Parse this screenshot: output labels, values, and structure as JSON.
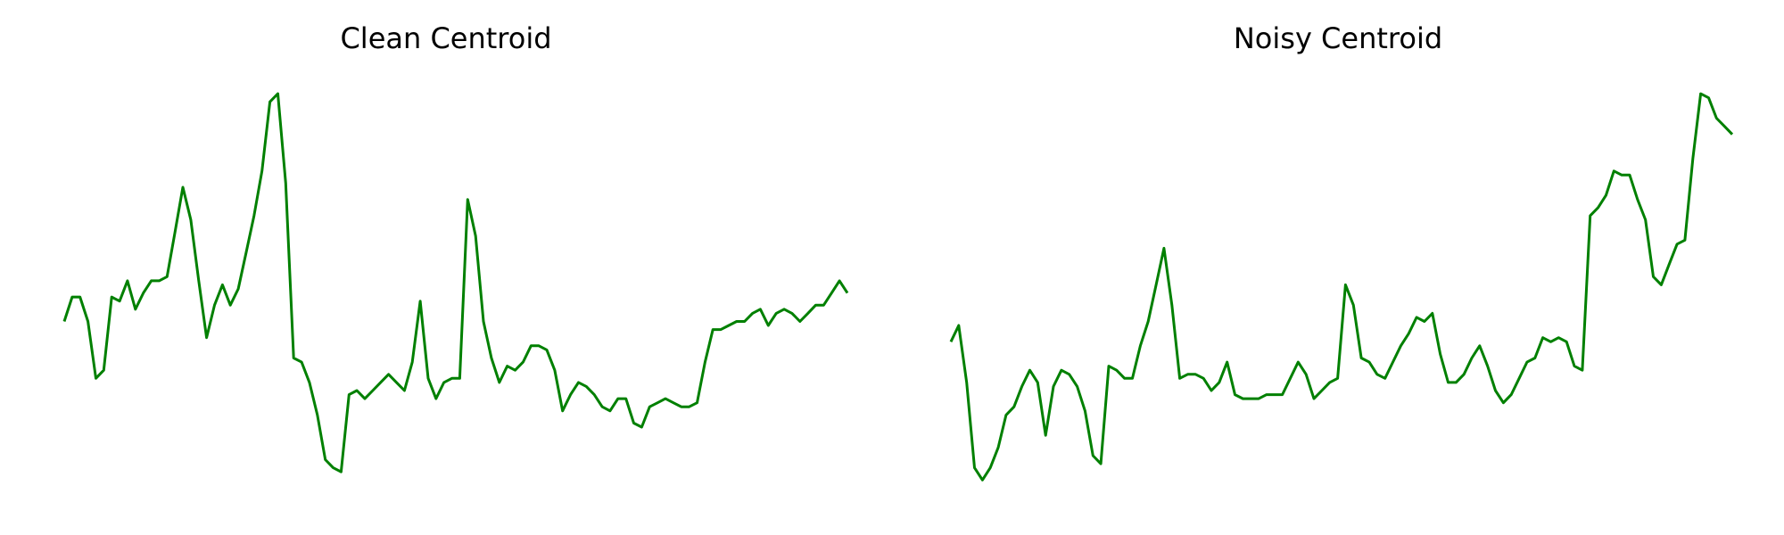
{
  "chart_data": [
    {
      "type": "line",
      "title": "Clean Centroid",
      "xlabel": "",
      "ylabel": "",
      "axes_visible": false,
      "grid": false,
      "color": "#008000",
      "x": [
        0,
        1,
        2,
        3,
        4,
        5,
        6,
        7,
        8,
        9,
        10,
        11,
        12,
        13,
        14,
        15,
        16,
        17,
        18,
        19,
        20,
        21,
        22,
        23,
        24,
        25,
        26,
        27,
        28,
        29,
        30,
        31,
        32,
        33,
        34,
        35,
        36,
        37,
        38,
        39,
        40,
        41,
        42,
        43,
        44,
        45,
        46,
        47,
        48,
        49,
        50,
        51,
        52,
        53,
        54,
        55,
        56,
        57,
        58,
        59,
        60,
        61,
        62,
        63,
        64,
        65,
        66,
        67,
        68,
        69,
        70,
        71,
        72,
        73,
        74,
        75,
        76,
        77,
        78,
        79,
        80,
        81,
        82,
        83,
        84,
        85,
        86,
        87,
        88,
        89,
        90,
        91,
        92,
        93,
        94,
        95,
        96,
        97,
        98,
        99
      ],
      "values": [
        0.42,
        0.48,
        0.48,
        0.42,
        0.28,
        0.3,
        0.48,
        0.47,
        0.52,
        0.45,
        0.49,
        0.52,
        0.52,
        0.53,
        0.64,
        0.75,
        0.67,
        0.52,
        0.38,
        0.46,
        0.51,
        0.46,
        0.5,
        0.59,
        0.68,
        0.79,
        0.96,
        0.98,
        0.76,
        0.33,
        0.32,
        0.27,
        0.19,
        0.08,
        0.06,
        0.05,
        0.24,
        0.25,
        0.23,
        0.25,
        0.27,
        0.29,
        0.27,
        0.25,
        0.32,
        0.47,
        0.28,
        0.23,
        0.27,
        0.28,
        0.28,
        0.72,
        0.63,
        0.42,
        0.33,
        0.27,
        0.31,
        0.3,
        0.32,
        0.36,
        0.36,
        0.35,
        0.3,
        0.2,
        0.24,
        0.27,
        0.26,
        0.24,
        0.21,
        0.2,
        0.23,
        0.23,
        0.17,
        0.16,
        0.21,
        0.22,
        0.23,
        0.22,
        0.21,
        0.21,
        0.22,
        0.32,
        0.4,
        0.4,
        0.41,
        0.42,
        0.42,
        0.44,
        0.45,
        0.41,
        0.44,
        0.45,
        0.44,
        0.42,
        0.44,
        0.46,
        0.46,
        0.49,
        0.52,
        0.49
      ],
      "ylim": [
        0.0,
        1.0
      ]
    },
    {
      "type": "line",
      "title": "Noisy Centroid",
      "xlabel": "",
      "ylabel": "",
      "axes_visible": false,
      "grid": false,
      "color": "#008000",
      "x": [
        0,
        1,
        2,
        3,
        4,
        5,
        6,
        7,
        8,
        9,
        10,
        11,
        12,
        13,
        14,
        15,
        16,
        17,
        18,
        19,
        20,
        21,
        22,
        23,
        24,
        25,
        26,
        27,
        28,
        29,
        30,
        31,
        32,
        33,
        34,
        35,
        36,
        37,
        38,
        39,
        40,
        41,
        42,
        43,
        44,
        45,
        46,
        47,
        48,
        49,
        50,
        51,
        52,
        53,
        54,
        55,
        56,
        57,
        58,
        59,
        60,
        61,
        62,
        63,
        64,
        65,
        66,
        67,
        68,
        69,
        70,
        71,
        72,
        73,
        74,
        75,
        76,
        77,
        78,
        79,
        80,
        81,
        82,
        83,
        84,
        85,
        86,
        87,
        88,
        89,
        90,
        91,
        92,
        93,
        94,
        95,
        96,
        97,
        98,
        99
      ],
      "values": [
        0.37,
        0.41,
        0.27,
        0.06,
        0.03,
        0.06,
        0.11,
        0.19,
        0.21,
        0.26,
        0.3,
        0.27,
        0.14,
        0.26,
        0.3,
        0.29,
        0.26,
        0.2,
        0.09,
        0.07,
        0.31,
        0.3,
        0.28,
        0.28,
        0.36,
        0.42,
        0.51,
        0.6,
        0.46,
        0.28,
        0.29,
        0.29,
        0.28,
        0.25,
        0.27,
        0.32,
        0.24,
        0.23,
        0.23,
        0.23,
        0.24,
        0.24,
        0.24,
        0.28,
        0.32,
        0.29,
        0.23,
        0.25,
        0.27,
        0.28,
        0.51,
        0.46,
        0.33,
        0.32,
        0.29,
        0.28,
        0.32,
        0.36,
        0.39,
        0.43,
        0.42,
        0.44,
        0.34,
        0.27,
        0.27,
        0.29,
        0.33,
        0.36,
        0.31,
        0.25,
        0.22,
        0.24,
        0.28,
        0.32,
        0.33,
        0.38,
        0.37,
        0.38,
        0.37,
        0.31,
        0.3,
        0.68,
        0.7,
        0.73,
        0.79,
        0.78,
        0.78,
        0.72,
        0.67,
        0.53,
        0.51,
        0.56,
        0.61,
        0.62,
        0.82,
        0.98,
        0.97,
        0.92,
        0.9,
        0.88
      ],
      "ylim": [
        0.0,
        1.0
      ]
    }
  ]
}
